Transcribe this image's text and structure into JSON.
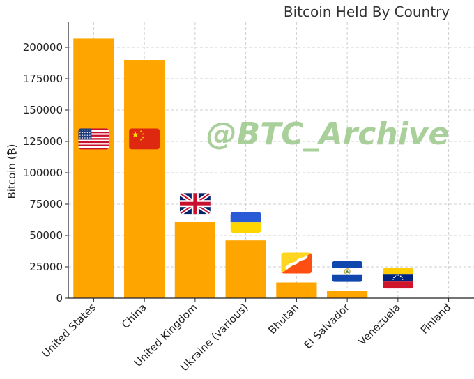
{
  "chart_data": {
    "type": "bar",
    "title": "Bitcoin Held By Country",
    "xlabel": "",
    "ylabel": "Bitcoin (₿)",
    "categories": [
      "United States",
      "China",
      "United Kingdom",
      "Ukraine (various)",
      "Bhutan",
      "El Salvador",
      "Venezuela",
      "Finland"
    ],
    "values": [
      207000,
      190000,
      61000,
      46000,
      12500,
      5700,
      0,
      0
    ],
    "ylim": [
      0,
      220000
    ],
    "yticks": [
      0,
      25000,
      50000,
      75000,
      100000,
      125000,
      150000,
      175000,
      200000
    ],
    "grid": true,
    "bar_color": "#FFA500",
    "flags": [
      "us-flag-icon",
      "china-flag-icon",
      "uk-flag-icon",
      "ukraine-flag-icon",
      "bhutan-flag-icon",
      "el-salvador-flag-icon",
      "venezuela-flag-icon",
      null
    ]
  },
  "watermark": "@BTC_Archive"
}
